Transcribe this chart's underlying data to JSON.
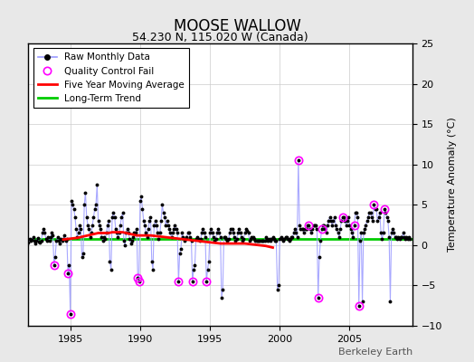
{
  "title": "MOOSE WALLOW",
  "subtitle": "54.230 N, 115.020 W (Canada)",
  "ylabel": "Temperature Anomaly (°C)",
  "watermark": "Berkeley Earth",
  "xlim": [
    1982.0,
    2009.5
  ],
  "ylim": [
    -10,
    25
  ],
  "yticks": [
    -10,
    -5,
    0,
    5,
    10,
    15,
    20,
    25
  ],
  "xticks": [
    1985,
    1990,
    1995,
    2000,
    2005
  ],
  "long_term_trend_y": 0.75,
  "bg_color": "#e8e8e8",
  "plot_bg_color": "#ffffff",
  "raw_line_color": "#9999ff",
  "raw_dot_color": "#000000",
  "qc_fail_color": "#ff00ff",
  "moving_avg_color": "#ff0000",
  "trend_color": "#00cc00",
  "grid_color": "#cccccc",
  "raw_data": [
    [
      1982.0,
      0.3
    ],
    [
      1982.083,
      0.8
    ],
    [
      1982.167,
      0.5
    ],
    [
      1982.25,
      0.7
    ],
    [
      1982.333,
      1.0
    ],
    [
      1982.417,
      0.5
    ],
    [
      1982.5,
      0.2
    ],
    [
      1982.583,
      0.6
    ],
    [
      1982.667,
      0.9
    ],
    [
      1982.75,
      0.4
    ],
    [
      1982.833,
      0.3
    ],
    [
      1982.917,
      0.5
    ],
    [
      1983.0,
      1.5
    ],
    [
      1983.083,
      2.0
    ],
    [
      1983.167,
      1.5
    ],
    [
      1983.25,
      0.8
    ],
    [
      1983.333,
      0.5
    ],
    [
      1983.417,
      1.0
    ],
    [
      1983.5,
      0.5
    ],
    [
      1983.583,
      1.0
    ],
    [
      1983.667,
      1.5
    ],
    [
      1983.75,
      1.2
    ],
    [
      1983.833,
      -2.5
    ],
    [
      1983.917,
      -1.5
    ],
    [
      1984.0,
      0.5
    ],
    [
      1984.083,
      1.0
    ],
    [
      1984.167,
      0.5
    ],
    [
      1984.25,
      0.2
    ],
    [
      1984.333,
      0.8
    ],
    [
      1984.417,
      0.5
    ],
    [
      1984.5,
      0.8
    ],
    [
      1984.583,
      1.2
    ],
    [
      1984.667,
      0.5
    ],
    [
      1984.75,
      0.8
    ],
    [
      1984.833,
      -3.5
    ],
    [
      1984.917,
      -2.5
    ],
    [
      1985.0,
      -8.5
    ],
    [
      1985.083,
      5.5
    ],
    [
      1985.167,
      5.0
    ],
    [
      1985.25,
      4.5
    ],
    [
      1985.333,
      3.5
    ],
    [
      1985.417,
      2.0
    ],
    [
      1985.5,
      1.0
    ],
    [
      1985.583,
      1.5
    ],
    [
      1985.667,
      2.5
    ],
    [
      1985.75,
      2.0
    ],
    [
      1985.833,
      -1.5
    ],
    [
      1985.917,
      -1.0
    ],
    [
      1986.0,
      5.0
    ],
    [
      1986.083,
      6.5
    ],
    [
      1986.167,
      3.5
    ],
    [
      1986.25,
      2.5
    ],
    [
      1986.333,
      2.0
    ],
    [
      1986.417,
      1.0
    ],
    [
      1986.5,
      1.5
    ],
    [
      1986.583,
      2.5
    ],
    [
      1986.667,
      3.5
    ],
    [
      1986.75,
      4.5
    ],
    [
      1986.833,
      5.0
    ],
    [
      1986.917,
      7.5
    ],
    [
      1987.0,
      3.0
    ],
    [
      1987.083,
      2.5
    ],
    [
      1987.167,
      2.0
    ],
    [
      1987.25,
      1.0
    ],
    [
      1987.333,
      0.5
    ],
    [
      1987.417,
      1.0
    ],
    [
      1987.5,
      0.8
    ],
    [
      1987.583,
      1.5
    ],
    [
      1987.667,
      2.5
    ],
    [
      1987.75,
      3.0
    ],
    [
      1987.833,
      -2.0
    ],
    [
      1987.917,
      -3.0
    ],
    [
      1988.0,
      3.5
    ],
    [
      1988.083,
      4.0
    ],
    [
      1988.167,
      3.5
    ],
    [
      1988.25,
      2.0
    ],
    [
      1988.333,
      1.5
    ],
    [
      1988.417,
      1.0
    ],
    [
      1988.5,
      1.5
    ],
    [
      1988.583,
      2.5
    ],
    [
      1988.667,
      3.5
    ],
    [
      1988.75,
      4.0
    ],
    [
      1988.833,
      0.5
    ],
    [
      1988.917,
      0.0
    ],
    [
      1989.0,
      1.5
    ],
    [
      1989.083,
      2.0
    ],
    [
      1989.167,
      1.5
    ],
    [
      1989.25,
      0.8
    ],
    [
      1989.333,
      0.2
    ],
    [
      1989.417,
      0.5
    ],
    [
      1989.5,
      1.0
    ],
    [
      1989.583,
      1.5
    ],
    [
      1989.667,
      1.5
    ],
    [
      1989.75,
      2.0
    ],
    [
      1989.833,
      -4.0
    ],
    [
      1989.917,
      -4.5
    ],
    [
      1990.0,
      5.5
    ],
    [
      1990.083,
      6.0
    ],
    [
      1990.167,
      4.5
    ],
    [
      1990.25,
      3.0
    ],
    [
      1990.333,
      2.5
    ],
    [
      1990.417,
      1.5
    ],
    [
      1990.5,
      1.0
    ],
    [
      1990.583,
      2.0
    ],
    [
      1990.667,
      3.0
    ],
    [
      1990.75,
      3.5
    ],
    [
      1990.833,
      -2.0
    ],
    [
      1990.917,
      -3.0
    ],
    [
      1991.0,
      2.5
    ],
    [
      1991.083,
      3.0
    ],
    [
      1991.167,
      2.5
    ],
    [
      1991.25,
      1.5
    ],
    [
      1991.333,
      0.8
    ],
    [
      1991.417,
      1.5
    ],
    [
      1991.5,
      3.0
    ],
    [
      1991.583,
      5.0
    ],
    [
      1991.667,
      4.0
    ],
    [
      1991.75,
      3.5
    ],
    [
      1991.833,
      2.5
    ],
    [
      1991.917,
      3.0
    ],
    [
      1992.0,
      2.5
    ],
    [
      1992.083,
      2.0
    ],
    [
      1992.167,
      1.5
    ],
    [
      1992.25,
      1.0
    ],
    [
      1992.333,
      1.5
    ],
    [
      1992.417,
      2.0
    ],
    [
      1992.5,
      2.5
    ],
    [
      1992.583,
      2.0
    ],
    [
      1992.667,
      1.5
    ],
    [
      1992.75,
      -4.5
    ],
    [
      1992.833,
      -1.0
    ],
    [
      1992.917,
      -0.5
    ],
    [
      1993.0,
      1.5
    ],
    [
      1993.083,
      1.0
    ],
    [
      1993.167,
      0.5
    ],
    [
      1993.25,
      0.8
    ],
    [
      1993.333,
      1.0
    ],
    [
      1993.417,
      1.5
    ],
    [
      1993.5,
      1.5
    ],
    [
      1993.583,
      1.0
    ],
    [
      1993.667,
      0.5
    ],
    [
      1993.75,
      -4.5
    ],
    [
      1993.833,
      -3.0
    ],
    [
      1993.917,
      -2.5
    ],
    [
      1994.0,
      0.8
    ],
    [
      1994.083,
      1.0
    ],
    [
      1994.167,
      0.8
    ],
    [
      1994.25,
      0.5
    ],
    [
      1994.333,
      0.8
    ],
    [
      1994.417,
      1.5
    ],
    [
      1994.5,
      2.0
    ],
    [
      1994.583,
      1.5
    ],
    [
      1994.667,
      1.0
    ],
    [
      1994.75,
      -4.5
    ],
    [
      1994.833,
      -3.0
    ],
    [
      1994.917,
      -2.0
    ],
    [
      1995.0,
      1.5
    ],
    [
      1995.083,
      2.0
    ],
    [
      1995.167,
      1.5
    ],
    [
      1995.25,
      1.0
    ],
    [
      1995.333,
      0.5
    ],
    [
      1995.417,
      0.8
    ],
    [
      1995.5,
      1.5
    ],
    [
      1995.583,
      2.0
    ],
    [
      1995.667,
      1.5
    ],
    [
      1995.75,
      1.0
    ],
    [
      1995.833,
      -6.5
    ],
    [
      1995.917,
      -5.5
    ],
    [
      1996.0,
      1.0
    ],
    [
      1996.083,
      1.0
    ],
    [
      1996.167,
      0.8
    ],
    [
      1996.25,
      0.5
    ],
    [
      1996.333,
      0.8
    ],
    [
      1996.417,
      1.5
    ],
    [
      1996.5,
      2.0
    ],
    [
      1996.583,
      2.0
    ],
    [
      1996.667,
      1.5
    ],
    [
      1996.75,
      1.0
    ],
    [
      1996.833,
      0.5
    ],
    [
      1996.917,
      0.8
    ],
    [
      1997.0,
      1.5
    ],
    [
      1997.083,
      2.0
    ],
    [
      1997.167,
      1.5
    ],
    [
      1997.25,
      1.0
    ],
    [
      1997.333,
      0.5
    ],
    [
      1997.417,
      0.8
    ],
    [
      1997.5,
      1.5
    ],
    [
      1997.583,
      2.0
    ],
    [
      1997.667,
      1.8
    ],
    [
      1997.75,
      1.5
    ],
    [
      1997.833,
      0.5
    ],
    [
      1997.917,
      0.8
    ],
    [
      1998.0,
      1.0
    ],
    [
      1998.083,
      1.0
    ],
    [
      1998.167,
      0.8
    ],
    [
      1998.25,
      0.5
    ],
    [
      1998.333,
      0.5
    ],
    [
      1998.417,
      0.5
    ],
    [
      1998.5,
      0.5
    ],
    [
      1998.583,
      0.5
    ],
    [
      1998.667,
      0.5
    ],
    [
      1998.75,
      0.5
    ],
    [
      1998.833,
      0.5
    ],
    [
      1998.917,
      0.5
    ],
    [
      1999.0,
      1.0
    ],
    [
      1999.083,
      0.8
    ],
    [
      1999.167,
      0.5
    ],
    [
      1999.25,
      0.8
    ],
    [
      1999.333,
      0.5
    ],
    [
      1999.417,
      0.8
    ],
    [
      1999.5,
      1.0
    ],
    [
      1999.583,
      0.8
    ],
    [
      1999.667,
      0.5
    ],
    [
      1999.75,
      0.5
    ],
    [
      1999.833,
      -5.5
    ],
    [
      1999.917,
      -5.0
    ],
    [
      2000.0,
      0.8
    ],
    [
      2000.083,
      1.0
    ],
    [
      2000.167,
      0.8
    ],
    [
      2000.25,
      0.5
    ],
    [
      2000.333,
      0.8
    ],
    [
      2000.417,
      1.0
    ],
    [
      2000.5,
      1.0
    ],
    [
      2000.583,
      0.8
    ],
    [
      2000.667,
      0.5
    ],
    [
      2000.75,
      0.8
    ],
    [
      2000.833,
      1.0
    ],
    [
      2000.917,
      1.0
    ],
    [
      2001.0,
      1.5
    ],
    [
      2001.083,
      2.0
    ],
    [
      2001.167,
      1.5
    ],
    [
      2001.25,
      1.0
    ],
    [
      2001.333,
      10.5
    ],
    [
      2001.417,
      2.5
    ],
    [
      2001.5,
      2.0
    ],
    [
      2001.583,
      2.0
    ],
    [
      2001.667,
      2.0
    ],
    [
      2001.75,
      1.5
    ],
    [
      2001.833,
      2.0
    ],
    [
      2001.917,
      2.0
    ],
    [
      2002.0,
      2.5
    ],
    [
      2002.083,
      2.5
    ],
    [
      2002.167,
      2.0
    ],
    [
      2002.25,
      1.5
    ],
    [
      2002.333,
      2.0
    ],
    [
      2002.417,
      2.5
    ],
    [
      2002.5,
      2.5
    ],
    [
      2002.583,
      2.5
    ],
    [
      2002.667,
      2.0
    ],
    [
      2002.75,
      -6.5
    ],
    [
      2002.833,
      -1.5
    ],
    [
      2002.917,
      0.5
    ],
    [
      2003.0,
      2.0
    ],
    [
      2003.083,
      2.5
    ],
    [
      2003.167,
      2.5
    ],
    [
      2003.25,
      2.0
    ],
    [
      2003.333,
      1.5
    ],
    [
      2003.417,
      2.5
    ],
    [
      2003.5,
      3.0
    ],
    [
      2003.583,
      3.5
    ],
    [
      2003.667,
      3.0
    ],
    [
      2003.75,
      2.5
    ],
    [
      2003.833,
      3.0
    ],
    [
      2003.917,
      3.5
    ],
    [
      2004.0,
      2.5
    ],
    [
      2004.083,
      2.0
    ],
    [
      2004.167,
      1.5
    ],
    [
      2004.25,
      1.0
    ],
    [
      2004.333,
      2.0
    ],
    [
      2004.417,
      3.0
    ],
    [
      2004.5,
      3.5
    ],
    [
      2004.583,
      3.5
    ],
    [
      2004.667,
      3.0
    ],
    [
      2004.75,
      2.5
    ],
    [
      2004.833,
      3.0
    ],
    [
      2004.917,
      3.5
    ],
    [
      2005.0,
      2.5
    ],
    [
      2005.083,
      2.0
    ],
    [
      2005.167,
      1.5
    ],
    [
      2005.25,
      1.0
    ],
    [
      2005.333,
      2.5
    ],
    [
      2005.417,
      4.0
    ],
    [
      2005.5,
      4.0
    ],
    [
      2005.583,
      3.5
    ],
    [
      2005.667,
      -7.5
    ],
    [
      2005.75,
      0.5
    ],
    [
      2005.833,
      1.5
    ],
    [
      2005.917,
      -7.0
    ],
    [
      2006.0,
      1.5
    ],
    [
      2006.083,
      2.0
    ],
    [
      2006.167,
      2.5
    ],
    [
      2006.25,
      3.0
    ],
    [
      2006.333,
      3.5
    ],
    [
      2006.417,
      4.0
    ],
    [
      2006.5,
      4.0
    ],
    [
      2006.583,
      3.5
    ],
    [
      2006.667,
      3.0
    ],
    [
      2006.75,
      5.0
    ],
    [
      2006.833,
      4.5
    ],
    [
      2006.917,
      4.5
    ],
    [
      2007.0,
      3.0
    ],
    [
      2007.083,
      3.5
    ],
    [
      2007.167,
      4.0
    ],
    [
      2007.25,
      1.5
    ],
    [
      2007.333,
      0.8
    ],
    [
      2007.417,
      1.5
    ],
    [
      2007.5,
      4.5
    ],
    [
      2007.583,
      4.0
    ],
    [
      2007.667,
      3.5
    ],
    [
      2007.75,
      3.0
    ],
    [
      2007.833,
      1.0
    ],
    [
      2007.917,
      -7.0
    ],
    [
      2008.0,
      1.5
    ],
    [
      2008.083,
      2.0
    ],
    [
      2008.167,
      1.5
    ],
    [
      2008.25,
      1.0
    ],
    [
      2008.333,
      1.0
    ],
    [
      2008.417,
      0.8
    ],
    [
      2008.5,
      1.0
    ],
    [
      2008.583,
      0.8
    ],
    [
      2008.667,
      1.0
    ],
    [
      2008.75,
      1.0
    ],
    [
      2008.833,
      1.5
    ],
    [
      2008.917,
      1.0
    ],
    [
      2009.0,
      0.8
    ],
    [
      2009.083,
      1.0
    ],
    [
      2009.167,
      0.8
    ],
    [
      2009.25,
      1.0
    ],
    [
      2009.333,
      0.8
    ]
  ],
  "qc_fail_points": [
    [
      1983.833,
      -2.5
    ],
    [
      1984.833,
      -3.5
    ],
    [
      1985.0,
      -8.5
    ],
    [
      1989.833,
      -4.0
    ],
    [
      1989.917,
      -4.5
    ],
    [
      1992.75,
      -4.5
    ],
    [
      1993.75,
      -4.5
    ],
    [
      1994.75,
      -4.5
    ],
    [
      2001.333,
      10.5
    ],
    [
      2002.083,
      2.5
    ],
    [
      2002.75,
      -6.5
    ],
    [
      2003.0,
      2.0
    ],
    [
      2004.5,
      3.5
    ],
    [
      2005.333,
      2.5
    ],
    [
      2005.667,
      -7.5
    ],
    [
      2006.75,
      5.0
    ],
    [
      2007.5,
      4.5
    ]
  ],
  "moving_avg_pts": [
    [
      1984.5,
      0.7
    ],
    [
      1984.75,
      0.75
    ],
    [
      1985.0,
      0.8
    ],
    [
      1985.25,
      0.85
    ],
    [
      1985.5,
      0.9
    ],
    [
      1985.75,
      1.0
    ],
    [
      1986.0,
      1.1
    ],
    [
      1986.25,
      1.2
    ],
    [
      1986.5,
      1.3
    ],
    [
      1986.75,
      1.4
    ],
    [
      1987.0,
      1.5
    ],
    [
      1987.25,
      1.5
    ],
    [
      1987.5,
      1.5
    ],
    [
      1987.75,
      1.5
    ],
    [
      1988.0,
      1.6
    ],
    [
      1988.25,
      1.6
    ],
    [
      1988.5,
      1.6
    ],
    [
      1988.75,
      1.6
    ],
    [
      1989.0,
      1.5
    ],
    [
      1989.25,
      1.4
    ],
    [
      1989.5,
      1.3
    ],
    [
      1989.75,
      1.2
    ],
    [
      1990.0,
      1.2
    ],
    [
      1990.25,
      1.2
    ],
    [
      1990.5,
      1.2
    ],
    [
      1990.75,
      1.2
    ],
    [
      1991.0,
      1.15
    ],
    [
      1991.25,
      1.1
    ],
    [
      1991.5,
      1.05
    ],
    [
      1991.75,
      1.0
    ],
    [
      1992.0,
      0.95
    ],
    [
      1992.25,
      0.9
    ],
    [
      1992.5,
      0.85
    ],
    [
      1992.75,
      0.8
    ],
    [
      1993.0,
      0.75
    ],
    [
      1993.25,
      0.7
    ],
    [
      1993.5,
      0.65
    ],
    [
      1993.75,
      0.6
    ],
    [
      1994.0,
      0.55
    ],
    [
      1994.25,
      0.5
    ],
    [
      1994.5,
      0.45
    ],
    [
      1994.75,
      0.4
    ],
    [
      1995.0,
      0.35
    ],
    [
      1995.25,
      0.3
    ],
    [
      1995.5,
      0.25
    ],
    [
      1995.75,
      0.2
    ],
    [
      1996.0,
      0.2
    ],
    [
      1996.25,
      0.2
    ],
    [
      1996.5,
      0.2
    ],
    [
      1996.75,
      0.2
    ],
    [
      1997.0,
      0.2
    ],
    [
      1997.25,
      0.2
    ],
    [
      1997.5,
      0.2
    ],
    [
      1997.75,
      0.15
    ],
    [
      1998.0,
      0.1
    ],
    [
      1998.25,
      0.05
    ],
    [
      1998.5,
      0.0
    ],
    [
      1998.75,
      -0.05
    ],
    [
      1999.0,
      -0.1
    ],
    [
      1999.25,
      -0.2
    ],
    [
      1999.5,
      -0.3
    ]
  ]
}
